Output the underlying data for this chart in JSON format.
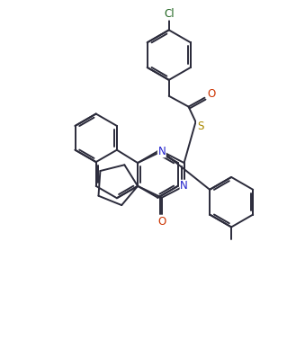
{
  "bg_color": "#ffffff",
  "line_color": "#2b2b3b",
  "atom_colors": {
    "N": "#2222cc",
    "O": "#cc3300",
    "S": "#aa8800",
    "Cl": "#226622",
    "C": "#2b2b3b"
  },
  "font_size_atom": 8.5,
  "line_width": 1.4,
  "figsize": [
    3.19,
    3.78
  ],
  "dpi": 100
}
